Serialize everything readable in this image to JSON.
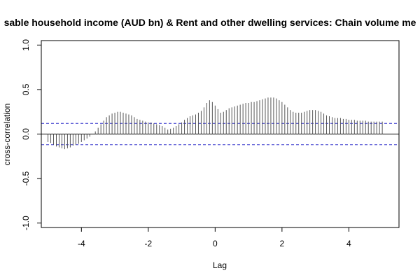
{
  "chart_data": {
    "type": "bar",
    "title": "sable household income (AUD bn) & Rent and other dwelling services: Chain volume me",
    "xlabel": "Lag",
    "ylabel": "cross-correlation",
    "xlim": [
      -5.2,
      5.5
    ],
    "ylim": [
      -1.05,
      1.05
    ],
    "xticks": [
      -4,
      -2,
      0,
      2,
      4
    ],
    "xtick_labels": [
      "-4",
      "-2",
      "0",
      "2",
      "4"
    ],
    "yticks": [
      -1.0,
      -0.5,
      0.0,
      0.5,
      1.0
    ],
    "ytick_labels": [
      "-1.0",
      "-0.5",
      "0.0",
      "0.5",
      "1.0"
    ],
    "confidence_bound": 0.12,
    "grid": false,
    "lag_step": 0.0833,
    "lags": [
      -5.0,
      -4.9167,
      -4.8333,
      -4.75,
      -4.6667,
      -4.5833,
      -4.5,
      -4.4167,
      -4.3333,
      -4.25,
      -4.1667,
      -4.0833,
      -4.0,
      -3.9167,
      -3.8333,
      -3.75,
      -3.6667,
      -3.5833,
      -3.5,
      -3.4167,
      -3.3333,
      -3.25,
      -3.1667,
      -3.0833,
      -3.0,
      -2.9167,
      -2.8333,
      -2.75,
      -2.6667,
      -2.5833,
      -2.5,
      -2.4167,
      -2.3333,
      -2.25,
      -2.1667,
      -2.0833,
      -2.0,
      -1.9167,
      -1.8333,
      -1.75,
      -1.6667,
      -1.5833,
      -1.5,
      -1.4167,
      -1.3333,
      -1.25,
      -1.1667,
      -1.0833,
      -1.0,
      -0.9167,
      -0.8333,
      -0.75,
      -0.6667,
      -0.5833,
      -0.5,
      -0.4167,
      -0.3333,
      -0.25,
      -0.1667,
      -0.0833,
      0.0,
      0.0833,
      0.1667,
      0.25,
      0.3333,
      0.4167,
      0.5,
      0.5833,
      0.6667,
      0.75,
      0.8333,
      0.9167,
      1.0,
      1.0833,
      1.1667,
      1.25,
      1.3333,
      1.4167,
      1.5,
      1.5833,
      1.6667,
      1.75,
      1.8333,
      1.9167,
      2.0,
      2.0833,
      2.1667,
      2.25,
      2.3333,
      2.4167,
      2.5,
      2.5833,
      2.6667,
      2.75,
      2.8333,
      2.9167,
      3.0,
      3.0833,
      3.1667,
      3.25,
      3.3333,
      3.4167,
      3.5,
      3.5833,
      3.6667,
      3.75,
      3.8333,
      3.9167,
      4.0,
      4.0833,
      4.1667,
      4.25,
      4.3333,
      4.4167,
      4.5,
      4.5833,
      4.6667,
      4.75,
      4.8333,
      4.9167,
      5.0
    ],
    "values": [
      -0.09,
      -0.1,
      -0.12,
      -0.14,
      -0.15,
      -0.16,
      -0.17,
      -0.16,
      -0.15,
      -0.13,
      -0.12,
      -0.11,
      -0.09,
      -0.07,
      -0.05,
      -0.03,
      0.0,
      0.03,
      0.07,
      0.11,
      0.15,
      0.19,
      0.21,
      0.23,
      0.24,
      0.25,
      0.25,
      0.24,
      0.23,
      0.22,
      0.21,
      0.19,
      0.17,
      0.16,
      0.15,
      0.14,
      0.13,
      0.13,
      0.12,
      0.11,
      0.1,
      0.09,
      0.07,
      0.05,
      0.06,
      0.07,
      0.09,
      0.11,
      0.13,
      0.16,
      0.18,
      0.2,
      0.21,
      0.22,
      0.24,
      0.26,
      0.3,
      0.35,
      0.38,
      0.36,
      0.32,
      0.28,
      0.24,
      0.25,
      0.27,
      0.29,
      0.3,
      0.31,
      0.32,
      0.33,
      0.34,
      0.35,
      0.35,
      0.36,
      0.36,
      0.37,
      0.38,
      0.39,
      0.4,
      0.41,
      0.41,
      0.41,
      0.4,
      0.38,
      0.36,
      0.33,
      0.3,
      0.27,
      0.25,
      0.24,
      0.24,
      0.24,
      0.25,
      0.26,
      0.27,
      0.27,
      0.27,
      0.26,
      0.25,
      0.23,
      0.21,
      0.2,
      0.19,
      0.18,
      0.18,
      0.18,
      0.17,
      0.17,
      0.16,
      0.16,
      0.16,
      0.15,
      0.15,
      0.15,
      0.15,
      0.14,
      0.14,
      0.14,
      0.14,
      0.14,
      0.14
    ]
  },
  "colors": {
    "spike": "#555555",
    "axis": "#000000",
    "zero_line": "#000000",
    "confidence_line": "#3333cc",
    "background": "#ffffff"
  }
}
